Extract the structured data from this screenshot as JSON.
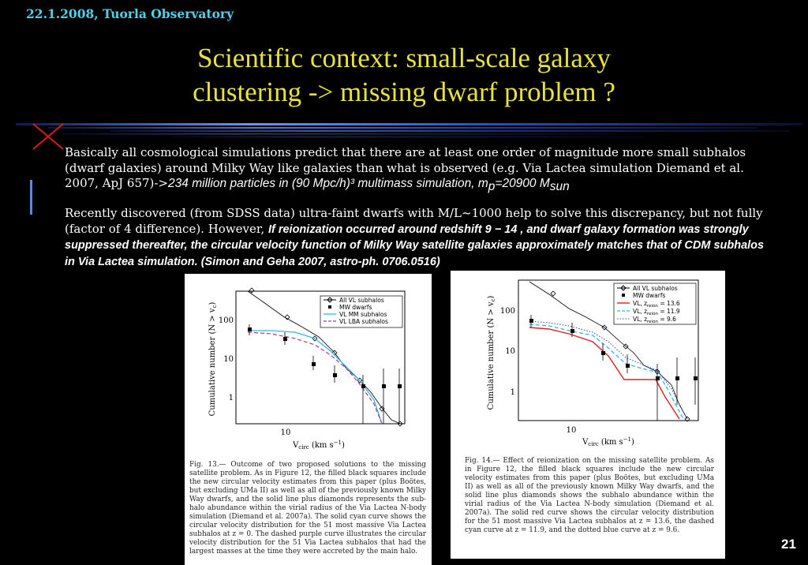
{
  "header": {
    "date_location": "22.1.2008, Tuorla Observatory"
  },
  "title": {
    "line1": "Scientific context: small-scale galaxy",
    "line2": "clustering -> missing dwarf problem ?"
  },
  "body": {
    "para1_plain": "Basically all cosmological simulations predict that there are at least one order of magnitude more small subhalos (dwarf galaxies) around Milky Way like galaxies than what is observed (e.g. Via Lactea simulation Diemand et al. 2007, ApJ 657)->",
    "para1_italic": "234 million particles in (90 Mpc/h)³ multimass simulation, m",
    "para1_sub_p": "p",
    "para1_eq": "=20900 M",
    "para1_sub_sun": "sun",
    "para2_plain": "Recently discovered (from SDSS data) ultra-faint dwarfs with M/L~1000 help to solve this discrepancy, but not fully (factor of 4 difference). However, ",
    "para2_bold": "If reionization occurred around redshift 9 − 14 , and dwarf galaxy formation was strongly suppressed thereafter, the circular velocity function of Milky Way satellite galaxies approximately matches that of CDM subhalos in Via Lactea simulation. (Simon and Geha 2007, astro-ph. 0706.0516)"
  },
  "figure1": {
    "ylabel": "Cumulative number (N > v",
    "ylabel_sub": "c",
    "ylabel_end": ")",
    "xlabel": "V",
    "xlabel_sub": "circ",
    "xlabel_unit": "(km s",
    "xlabel_exp": "−1",
    "xlabel_end": ")",
    "yticks": [
      "100",
      "10",
      "1"
    ],
    "xticks": [
      "10"
    ],
    "legend": [
      "All VL subhalos",
      "MW dwarfs",
      "VL MM subhalos",
      "VL LBA subhalos"
    ],
    "caption": "Fig. 13.— Outcome of two proposed solutions to the missing satellite problem. As in Figure 12, the filled black squares include the new circular velocity estimates from this paper (plus Boötes, but excluding UMa II) as well as all of the previously known Milky Way dwarfs, and the solid line plus diamonds represents the sub-halo abundance within the virial radius of the Via Lactea N-body simulation (Diemand et al. 2007a). The solid cyan curve shows the circular velocity distribution for the 51 most massive Via Lactea subhalos at z = 0. The dashed purple curve illustrates the circular velocity distribution for the 51 Via Lactea subhalos that had the largest masses at the time they were accreted by the main halo."
  },
  "figure2": {
    "ylabel": "Cumulative number (N > v",
    "ylabel_sub": "c",
    "ylabel_end": ")",
    "xlabel": "V",
    "xlabel_sub": "circ",
    "xlabel_unit": "(km s",
    "xlabel_exp": "−1",
    "xlabel_end": ")",
    "yticks": [
      "100",
      "10",
      "1"
    ],
    "xticks": [
      "10"
    ],
    "legend": [
      "All VL subhalos",
      "MW dwarfs",
      "VL, z",
      "VL, z",
      "VL, z"
    ],
    "legend_sub": "reion",
    "legend_vals": [
      "= 13.6",
      "= 11.9",
      "= 9.6"
    ],
    "caption": "Fig. 14.— Effect of reionization on the missing satellite problem. As in Figure 12, the filled black squares include the new circular velocity estimates from this paper (plus Boötes, but excluding UMa II) as well as all of the previously known Milky Way dwarfs, and the solid line plus diamonds shows the subhalo abundance within the virial radius of the Via Lactea N-body simulation (Diemand et al. 2007a). The solid red curve shows the circular velocity distribution for the 51 most massive Via Lactea subhalos at z = 13.6, the dashed cyan curve at z = 11.9, and the dotted blue curve at z = 9.6."
  },
  "colors": {
    "title": "#e8e23a",
    "header": "#4fd0e8",
    "cyan_curve": "#2fb8e8",
    "purple_curve": "#b04080",
    "red_curve": "#e02020",
    "blue_curve": "#3050c0"
  },
  "page_number": "21"
}
